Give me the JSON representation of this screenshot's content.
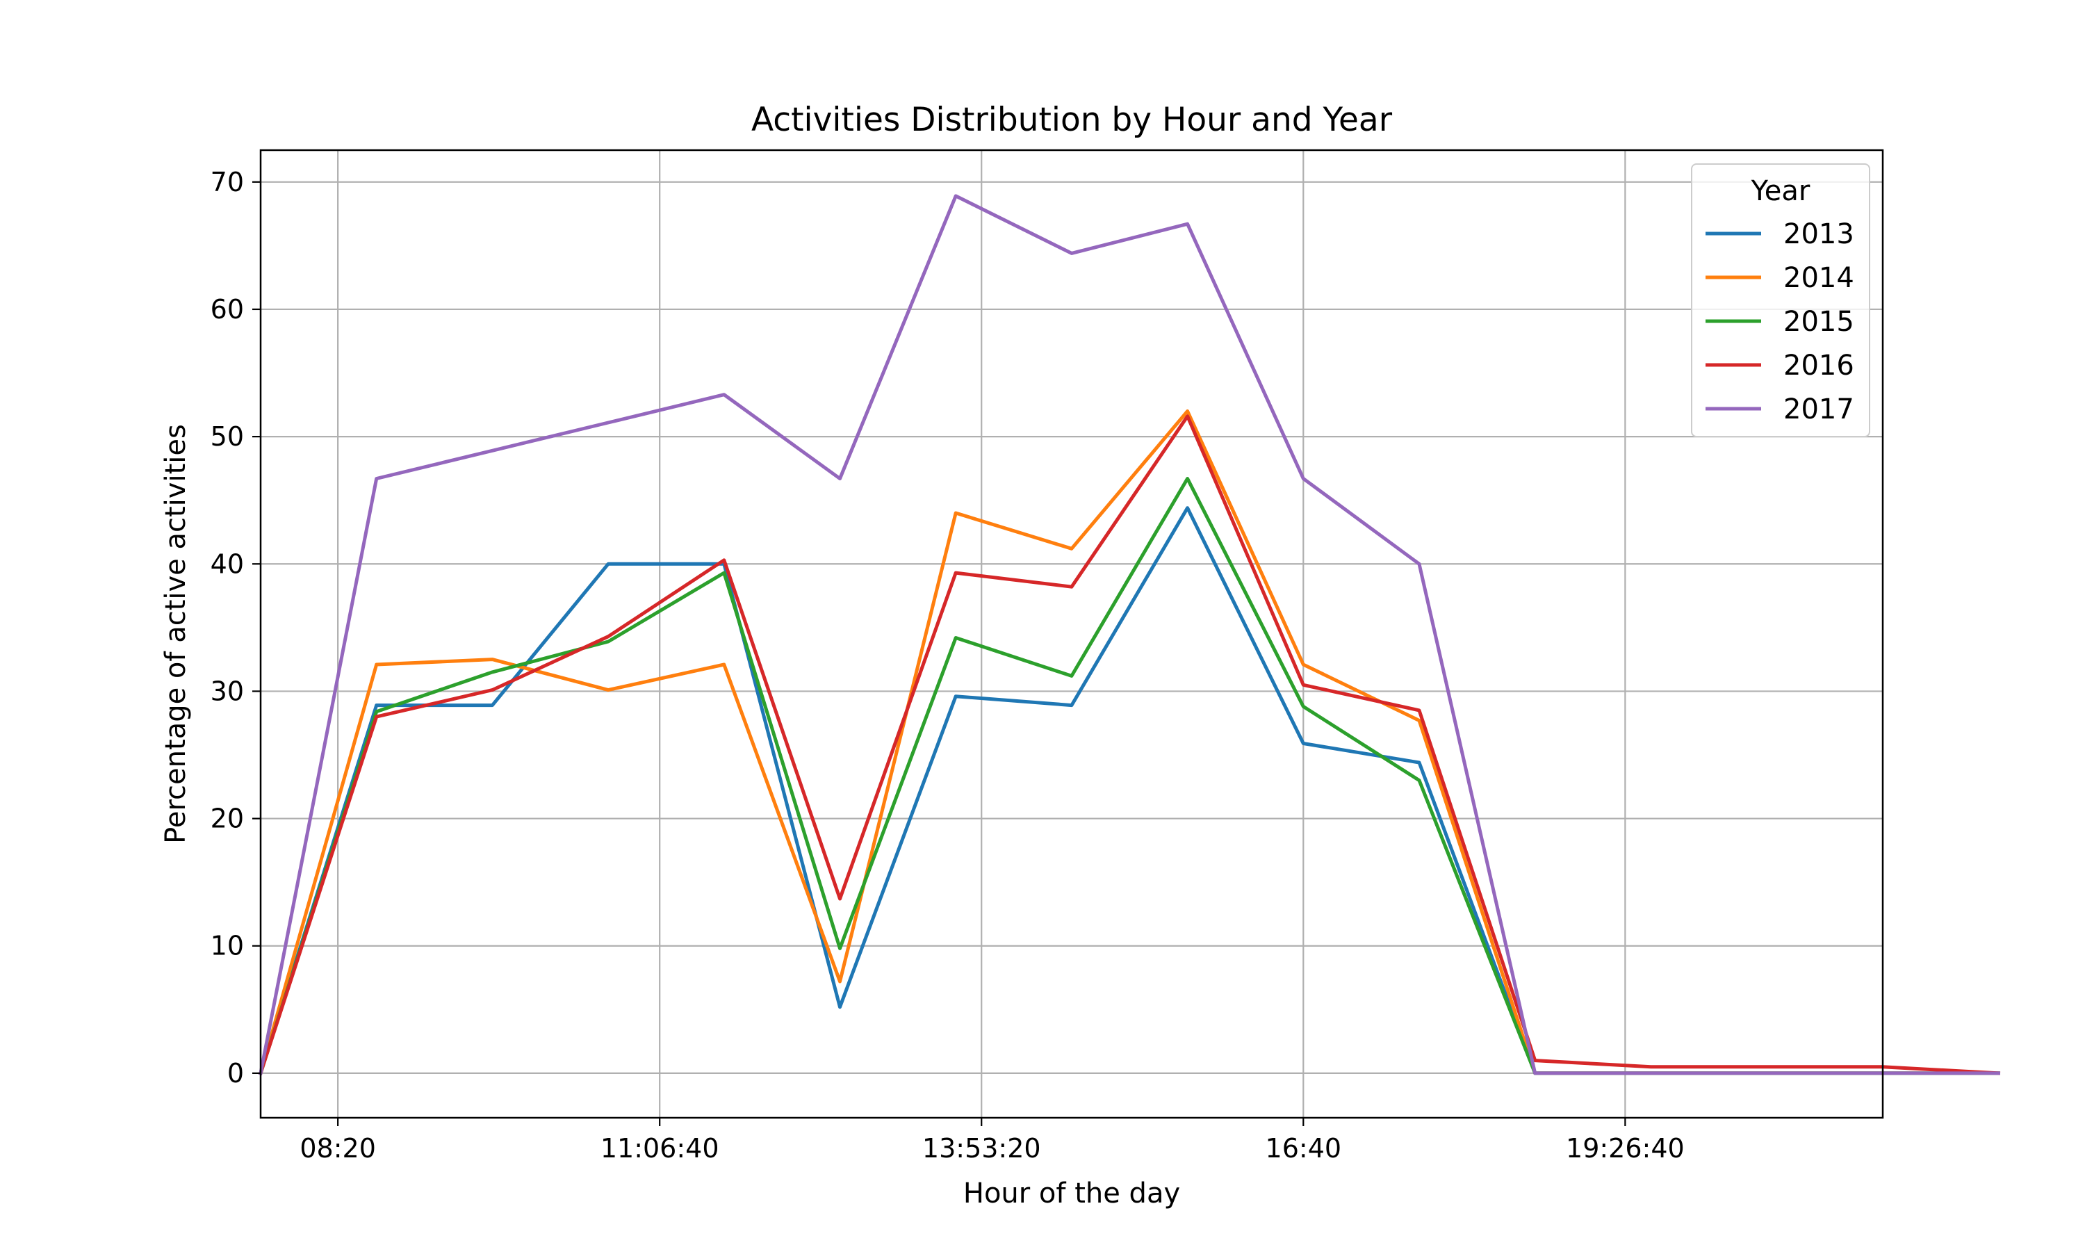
{
  "chart_data": {
    "type": "line",
    "title": "Activities Distribution by Hour and Year",
    "xlabel": "Hour of the day",
    "ylabel": "Percentage of active activities",
    "x": [
      "07:40",
      "08:40",
      "09:40",
      "10:40",
      "11:40",
      "12:40",
      "13:40",
      "14:40",
      "15:40",
      "16:40",
      "17:40",
      "18:40",
      "19:40",
      "20:40",
      "21:40",
      "22:40"
    ],
    "x_tick_labels": [
      "08:20",
      "11:06:40",
      "13:53:20",
      "16:40",
      "19:26:40"
    ],
    "y_ticks": [
      0,
      10,
      20,
      30,
      40,
      50,
      60,
      70
    ],
    "ylim": [
      -3.5,
      72.5
    ],
    "grid": true,
    "legend": {
      "title": "Year",
      "placement": "top-right"
    },
    "series": [
      {
        "name": "2013",
        "color": "#1f77b4",
        "values": [
          0,
          28.9,
          28.9,
          40.0,
          40.0,
          5.2,
          29.6,
          28.9,
          44.4,
          25.9,
          24.4,
          0,
          0,
          0,
          0,
          0
        ]
      },
      {
        "name": "2014",
        "color": "#ff7f0e",
        "values": [
          0,
          32.1,
          32.5,
          30.1,
          32.1,
          7.2,
          44.0,
          41.2,
          52.0,
          32.1,
          27.7,
          0,
          0,
          0,
          0,
          0
        ]
      },
      {
        "name": "2015",
        "color": "#2ca02c",
        "values": [
          0,
          28.4,
          31.5,
          33.9,
          39.3,
          9.8,
          34.2,
          31.2,
          46.7,
          28.8,
          23.0,
          0,
          0,
          0,
          0,
          0
        ]
      },
      {
        "name": "2016",
        "color": "#d62728",
        "values": [
          0,
          28.0,
          30.1,
          34.3,
          40.3,
          13.7,
          39.3,
          38.2,
          51.6,
          30.5,
          28.5,
          1.0,
          0.5,
          0.5,
          0.5,
          0
        ]
      },
      {
        "name": "2017",
        "color": "#9467bd",
        "values": [
          0,
          46.7,
          48.9,
          51.1,
          53.3,
          46.7,
          68.9,
          64.4,
          66.7,
          46.7,
          40.0,
          0,
          0,
          0,
          0,
          0
        ]
      }
    ]
  }
}
